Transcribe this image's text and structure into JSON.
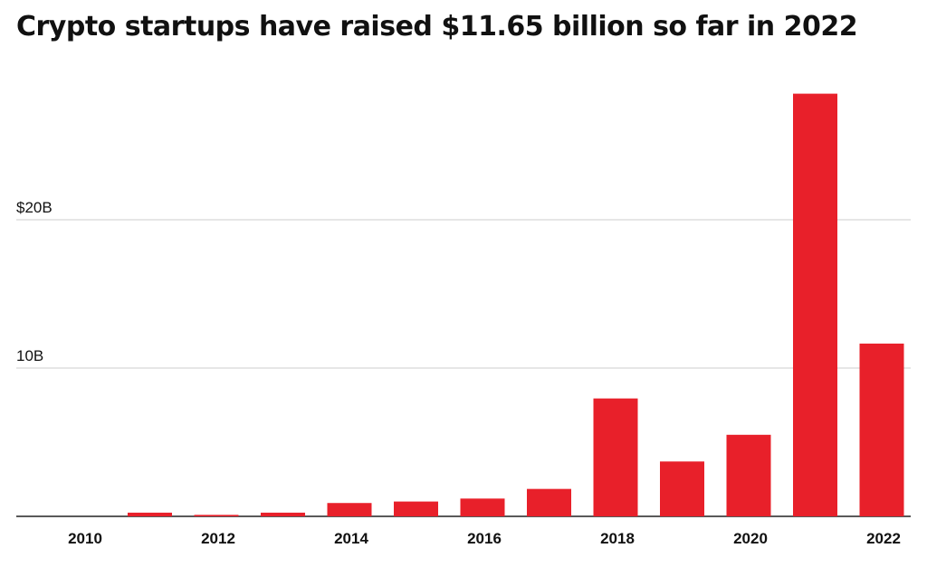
{
  "chart_data": {
    "type": "bar",
    "title": "Crypto startups have raised $11.65 billion so far in 2022",
    "categories": [
      "2010",
      "2011",
      "2012",
      "2013",
      "2014",
      "2015",
      "2016",
      "2017",
      "2018",
      "2019",
      "2020",
      "2021",
      "2022"
    ],
    "values": [
      0.0,
      0.25,
      0.1,
      0.25,
      0.9,
      1.0,
      1.2,
      1.85,
      7.95,
      3.7,
      5.5,
      28.5,
      11.65
    ],
    "xlabel": "",
    "ylabel": "",
    "ylim": [
      0,
      30
    ],
    "y_tick_labels": [
      {
        "value": 10,
        "label": "10B"
      },
      {
        "value": 20,
        "label": "$20B"
      }
    ],
    "x_tick_labels": [
      "2010",
      "2012",
      "2014",
      "2016",
      "2018",
      "2020",
      "2022"
    ],
    "bar_color": "#e8202a",
    "gridlines": true,
    "legend": "none"
  }
}
